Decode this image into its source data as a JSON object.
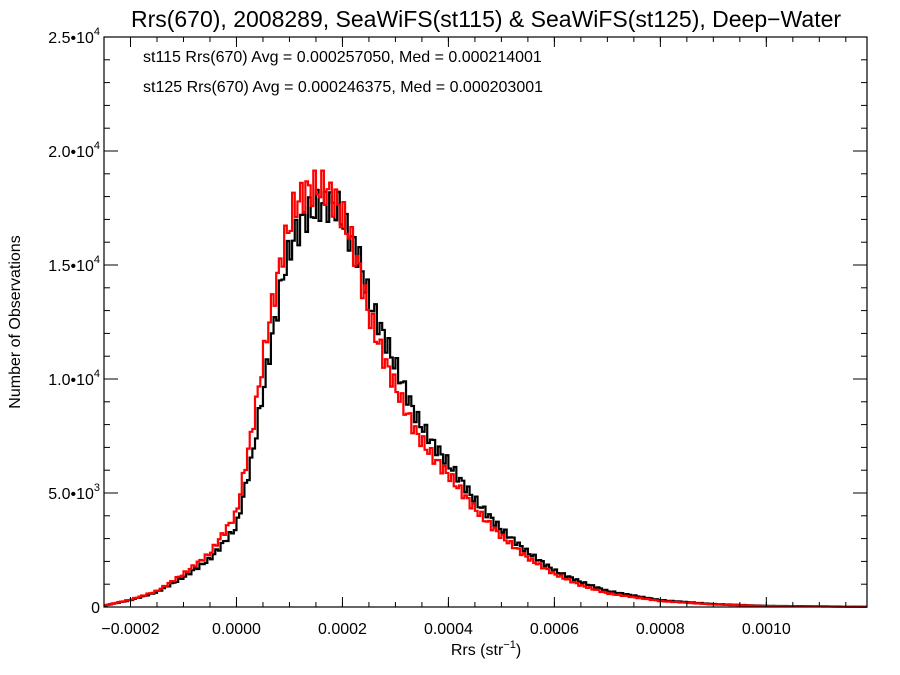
{
  "chart_data": {
    "type": "line",
    "title": "Rrs(670), 2008289, SeaWiFS(st115) & SeaWiFS(st125), Deep−Water",
    "xlabel": "Rrs (str",
    "xlabel_sup": "−1",
    "xlabel_close": ")",
    "ylabel": "Number of Observations",
    "xlim": [
      -0.00025,
      0.00119
    ],
    "ylim": [
      0,
      25000
    ],
    "step": true,
    "x_ticks": [
      {
        "value": -0.0002,
        "label": "−0.0002"
      },
      {
        "value": 0.0,
        "label": "0.0000"
      },
      {
        "value": 0.0002,
        "label": "0.0002"
      },
      {
        "value": 0.0004,
        "label": "0.0004"
      },
      {
        "value": 0.0006,
        "label": "0.0006"
      },
      {
        "value": 0.0008,
        "label": "0.0008"
      },
      {
        "value": 0.001,
        "label": "0.0010"
      }
    ],
    "y_ticks": [
      {
        "value": 0,
        "mant": "0",
        "exp": ""
      },
      {
        "value": 5000,
        "mant": "5.0•10",
        "exp": "3"
      },
      {
        "value": 10000,
        "mant": "1.0•10",
        "exp": "4"
      },
      {
        "value": 15000,
        "mant": "1.5•10",
        "exp": "4"
      },
      {
        "value": 20000,
        "mant": "2.0•10",
        "exp": "4"
      },
      {
        "value": 25000,
        "mant": "2.5•10",
        "exp": "4"
      }
    ],
    "annotations": [
      {
        "text": "st115 Rrs(670) Avg = 0.000257050, Med = 0.000214001",
        "color": "#000000"
      },
      {
        "text": "st125 Rrs(670) Avg = 0.000246375, Med = 0.000203001",
        "color": "#ff0000"
      }
    ],
    "series": [
      {
        "color": "#000000",
        "x": [
          -0.00025,
          -0.0002,
          -0.00015,
          -0.0001,
          -5e-05,
          0.0,
          3e-05,
          6e-05,
          9e-05,
          0.00011,
          0.00013,
          0.00015,
          0.00017,
          0.00019,
          0.00021,
          0.00023,
          0.00025,
          0.00028,
          0.00031,
          0.00034,
          0.00037,
          0.0004,
          0.00045,
          0.0005,
          0.00055,
          0.0006,
          0.00065,
          0.0007,
          0.0008,
          0.0009,
          0.001,
          0.00119
        ],
        "y": [
          60,
          300,
          650,
          1300,
          2100,
          3500,
          6600,
          10800,
          14800,
          16300,
          17100,
          17500,
          17700,
          17600,
          16400,
          15500,
          13500,
          11800,
          10000,
          8300,
          7200,
          6300,
          4700,
          3400,
          2400,
          1600,
          1100,
          700,
          300,
          130,
          50,
          10
        ]
      },
      {
        "color": "#ff0000",
        "x": [
          -0.00025,
          -0.0002,
          -0.00015,
          -0.0001,
          -5e-05,
          0.0,
          3e-05,
          6e-05,
          9e-05,
          0.00011,
          0.00013,
          0.00015,
          0.00017,
          0.00019,
          0.00021,
          0.00023,
          0.00025,
          0.00028,
          0.00031,
          0.00034,
          0.00037,
          0.0004,
          0.00045,
          0.0005,
          0.00055,
          0.0006,
          0.00065,
          0.0007,
          0.0008,
          0.0009,
          0.001,
          0.00119
        ],
        "y": [
          70,
          320,
          700,
          1450,
          2350,
          4100,
          7800,
          12300,
          15900,
          17600,
          18200,
          18400,
          18300,
          17700,
          16600,
          15000,
          12800,
          10800,
          9100,
          7600,
          6600,
          5800,
          4300,
          3100,
          2150,
          1450,
          950,
          600,
          260,
          110,
          40,
          10
        ]
      }
    ]
  }
}
